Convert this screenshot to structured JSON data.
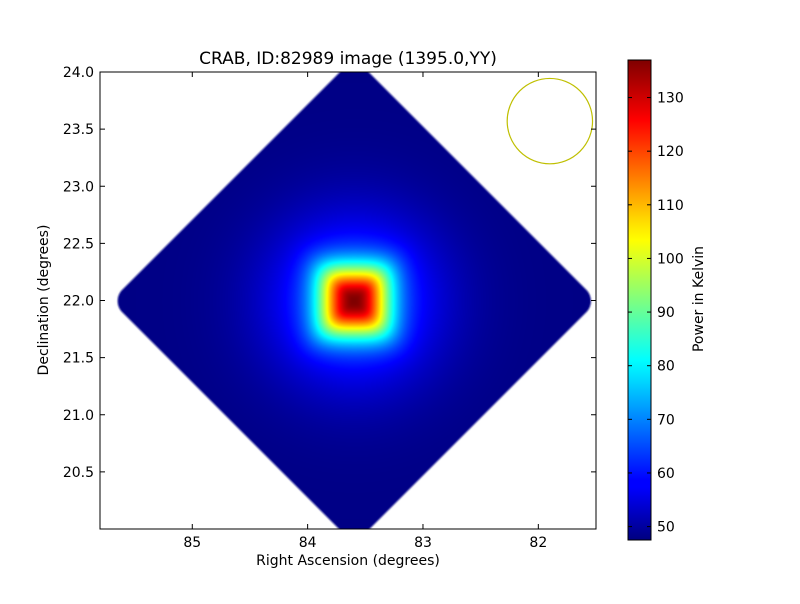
{
  "chart_data": {
    "type": "heatmap",
    "title": "CRAB, ID:82989 image (1395.0,YY)",
    "xlabel": "Right Ascension (degrees)",
    "ylabel": "Declination (degrees)",
    "colorbar_label": "Power in Kelvin",
    "xlim": [
      85.8,
      81.5
    ],
    "ylim": [
      20.0,
      24.0
    ],
    "x_ticks": [
      85,
      84,
      83,
      82
    ],
    "y_ticks": [
      20.5,
      21.0,
      21.5,
      22.0,
      22.5,
      23.0,
      23.5,
      24.0
    ],
    "x_tick_labels": [
      "85",
      "84",
      "83",
      "82"
    ],
    "y_tick_labels": [
      "20.5",
      "21.0",
      "21.5",
      "22.0",
      "22.5",
      "23.0",
      "23.5",
      "24.0"
    ],
    "color_range": [
      47.5,
      137
    ],
    "colorbar_ticks": [
      50,
      60,
      70,
      80,
      90,
      100,
      110,
      120,
      130
    ],
    "colorbar_tick_labels": [
      "50",
      "60",
      "70",
      "80",
      "90",
      "100",
      "110",
      "120",
      "130"
    ],
    "colormap": "jet",
    "source": {
      "ra": 83.6,
      "dec": 22.0,
      "peak": 137,
      "background": 48
    },
    "coverage_center": {
      "ra": 83.6,
      "dec": 22.0
    },
    "beam_circle": {
      "ra": 81.9,
      "dec": 23.57,
      "radius_deg": 0.37,
      "color": "#bfbf00"
    },
    "grid": false
  }
}
